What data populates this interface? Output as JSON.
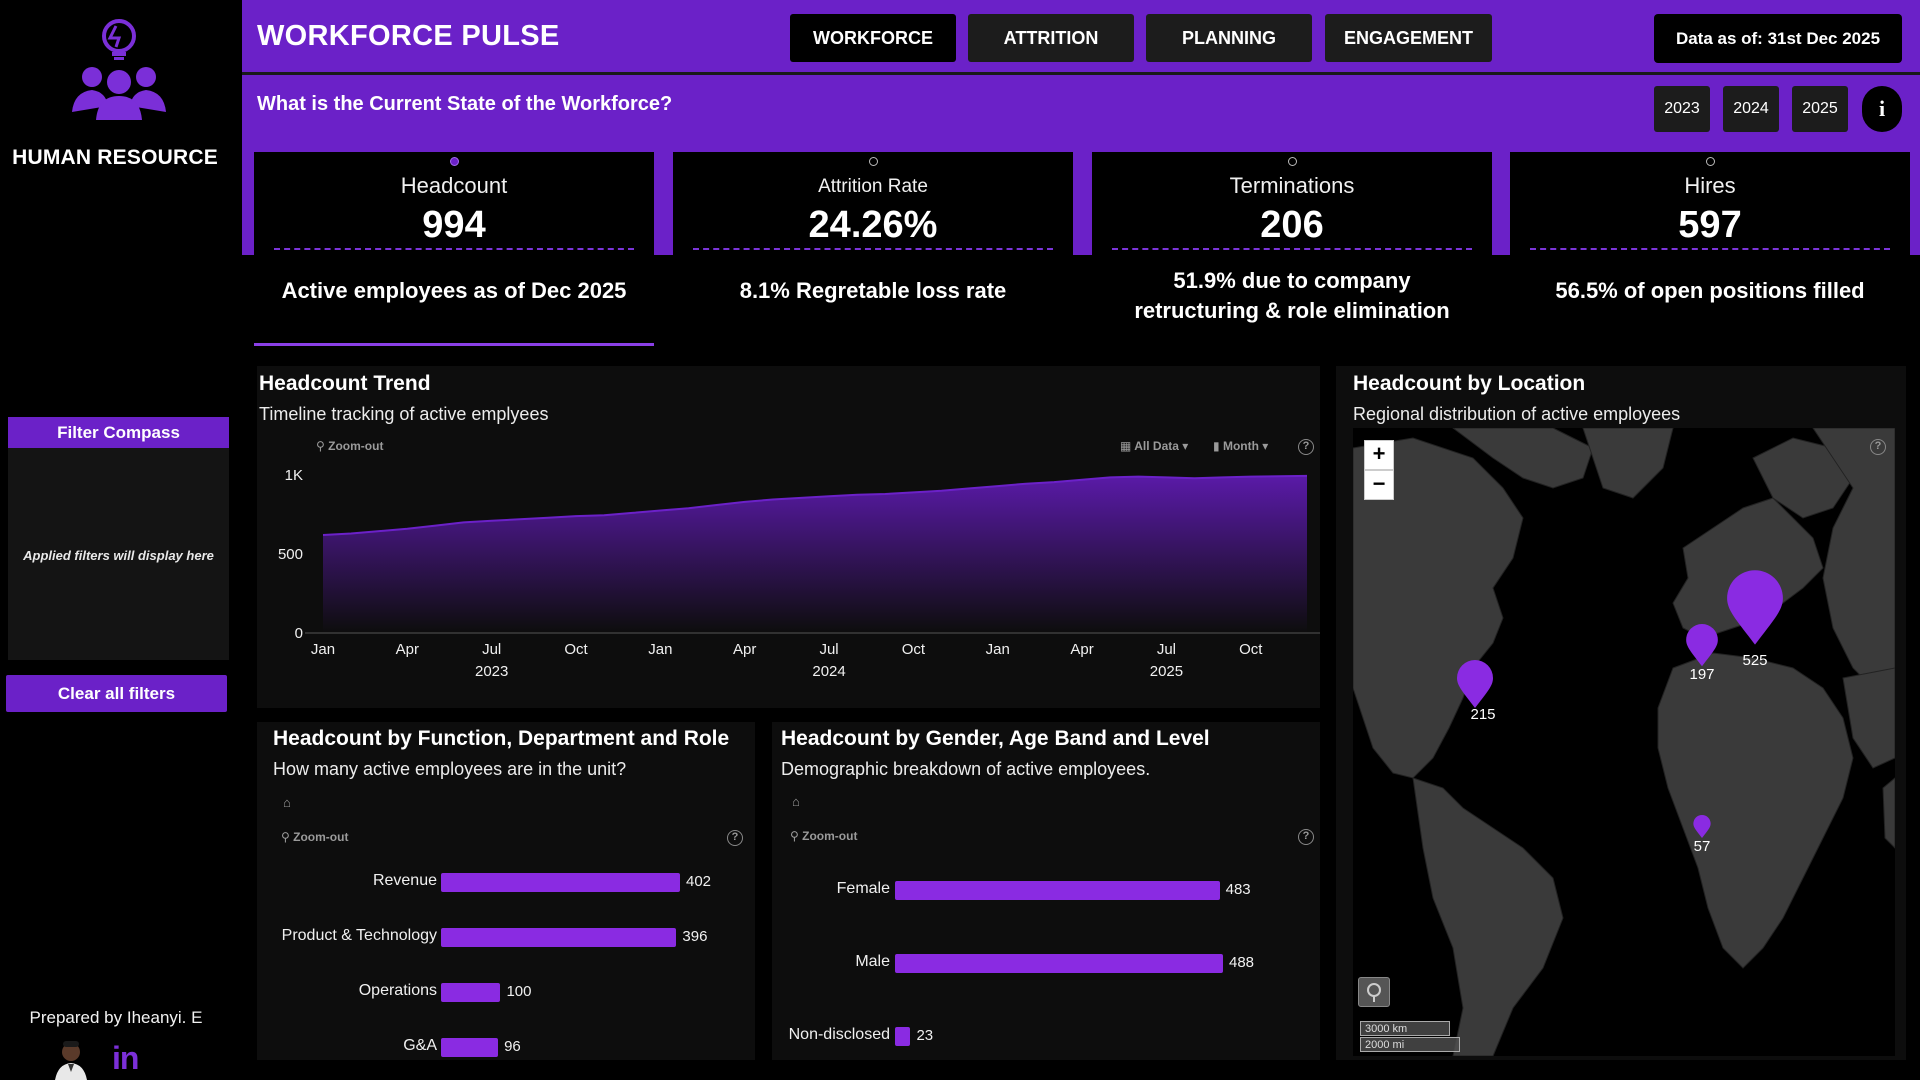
{
  "sidebar": {
    "brand": "HUMAN RESOURCE",
    "filter_title": "Filter Compass",
    "filter_hint": "Applied filters will display here",
    "clear_label": "Clear all filters",
    "prepared_by": "Prepared by Iheanyi. E",
    "linkedin": "in"
  },
  "header": {
    "title": "WORKFORCE PULSE",
    "nav": [
      "WORKFORCE",
      "ATTRITION",
      "PLANNING",
      "ENGAGEMENT"
    ],
    "active_nav": "WORKFORCE",
    "as_of": "Data as of: 31st Dec 2025",
    "question": "What is the Current State of the Workforce?",
    "years": [
      "2023",
      "2024",
      "2025"
    ],
    "info": "i"
  },
  "kpis": [
    {
      "label": "Headcount",
      "value": "994",
      "sub": "Active employees as of Dec 2025"
    },
    {
      "label": "Attrition Rate",
      "value": "24.26%",
      "sub": "8.1% Regretable loss rate"
    },
    {
      "label": "Terminations",
      "value": "206",
      "sub": "51.9% due to company retructuring & role elimination"
    },
    {
      "label": "Hires",
      "value": "597",
      "sub": "56.5% of open positions filled"
    }
  ],
  "trend": {
    "title": "Headcount Trend",
    "subtitle": "Timeline tracking of active emplyees",
    "zoom": "Zoom-out",
    "all_data": "All Data",
    "month": "Month",
    "help": "?"
  },
  "location": {
    "title": "Headcount by Location",
    "subtitle": "Regional distribution of active employees",
    "zoom_in": "+",
    "zoom_out": "−",
    "scale_km": "3000 km",
    "scale_mi": "2000 mi",
    "help": "?",
    "pins": [
      {
        "value": "215"
      },
      {
        "value": "197"
      },
      {
        "value": "525"
      },
      {
        "value": "57"
      }
    ]
  },
  "function": {
    "title": "Headcount by Function, Department and Role",
    "subtitle": "How many active employees are in the unit?",
    "zoom": "Zoom-out",
    "help": "?"
  },
  "gender": {
    "title": "Headcount by Gender, Age Band and Level",
    "subtitle": "Demographic breakdown of active employees.",
    "zoom": "Zoom-out",
    "help": "?"
  },
  "chart_data": [
    {
      "type": "area",
      "title": "Headcount Trend",
      "x": [
        "Jan 2023",
        "Feb 2023",
        "Mar 2023",
        "Apr 2023",
        "May 2023",
        "Jun 2023",
        "Jul 2023",
        "Aug 2023",
        "Sep 2023",
        "Oct 2023",
        "Nov 2023",
        "Dec 2023",
        "Jan 2024",
        "Feb 2024",
        "Mar 2024",
        "Apr 2024",
        "May 2024",
        "Jun 2024",
        "Jul 2024",
        "Aug 2024",
        "Sep 2024",
        "Oct 2024",
        "Nov 2024",
        "Dec 2024",
        "Jan 2025",
        "Feb 2025",
        "Mar 2025",
        "Apr 2025",
        "May 2025",
        "Jun 2025",
        "Jul 2025",
        "Aug 2025",
        "Sep 2025",
        "Oct 2025",
        "Nov 2025",
        "Dec 2025"
      ],
      "values": [
        620,
        630,
        645,
        660,
        680,
        700,
        710,
        720,
        730,
        740,
        745,
        760,
        775,
        790,
        810,
        830,
        845,
        855,
        865,
        875,
        880,
        890,
        900,
        915,
        930,
        945,
        955,
        970,
        985,
        990,
        985,
        980,
        985,
        990,
        992,
        994
      ],
      "tick_labels": [
        "Jan",
        "Apr",
        "Jul",
        "Oct",
        "Jan",
        "Apr",
        "Jul",
        "Oct",
        "Jan",
        "Apr",
        "Jul",
        "Oct"
      ],
      "year_labels": [
        "2023",
        "2024",
        "2025"
      ],
      "y_ticks": [
        "0",
        "500",
        "1K"
      ],
      "ylim": [
        0,
        1000
      ]
    },
    {
      "type": "bar",
      "title": "Headcount by Function, Department and Role",
      "categories": [
        "Revenue",
        "Product & Technology",
        "Operations",
        "G&A"
      ],
      "values": [
        402,
        396,
        100,
        96
      ]
    },
    {
      "type": "bar",
      "title": "Headcount by Gender, Age Band and Level",
      "categories": [
        "Female",
        "Male",
        "Non-disclosed"
      ],
      "values": [
        483,
        488,
        23
      ]
    }
  ],
  "colors": {
    "accent": "#6b21c8",
    "bar": "#8a2be2",
    "panel": "#0d0d0d"
  }
}
